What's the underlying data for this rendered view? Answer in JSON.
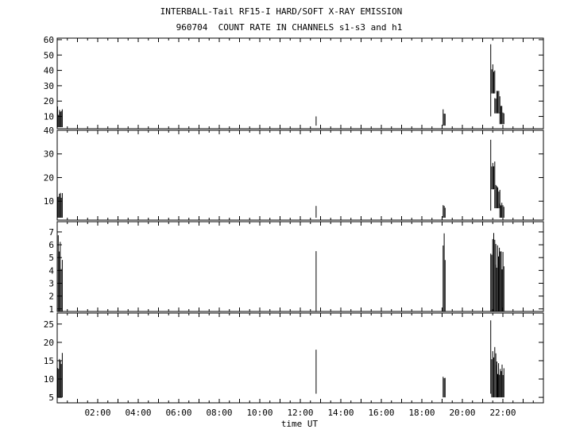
{
  "header": {
    "title": "INTERBALL-Tail RF15-I HARD/SOFT X-RAY EMISSION",
    "subtitle": "960704  COUNT RATE IN CHANNELS s1-s3 and h1"
  },
  "chart_data": {
    "type": "line",
    "title": "INTERBALL-Tail RF15-I HARD/SOFT X-RAY EMISSION",
    "subtitle": "960704  COUNT RATE IN CHANNELS s1-s3 and h1",
    "xlabel": "time UT",
    "xlim": [
      0.0,
      24.0
    ],
    "xticks": [
      "02:00",
      "04:00",
      "06:00",
      "08:00",
      "10:00",
      "12:00",
      "14:00",
      "16:00",
      "18:00",
      "20:00",
      "22:00"
    ],
    "xtick_hours": [
      2,
      4,
      6,
      8,
      10,
      12,
      14,
      16,
      18,
      20,
      22
    ],
    "grid": false,
    "panels": [
      {
        "ylim": [
          2,
          61
        ],
        "yticks": [
          10,
          20,
          30,
          40,
          50,
          60
        ],
        "bursts": [
          {
            "start": 0.02,
            "end": 0.25,
            "low": 3,
            "high": 17
          },
          {
            "start": 12.78,
            "end": 12.8,
            "low": 4,
            "high": 10
          },
          {
            "start": 19.05,
            "end": 19.15,
            "low": 4,
            "high": 15
          },
          {
            "start": 21.4,
            "end": 21.45,
            "low": 10,
            "high": 57
          },
          {
            "start": 21.45,
            "end": 21.6,
            "low": 25,
            "high": 50
          },
          {
            "start": 21.6,
            "end": 21.85,
            "low": 12,
            "high": 28
          },
          {
            "start": 21.85,
            "end": 22.05,
            "low": 5,
            "high": 17
          }
        ]
      },
      {
        "ylim": [
          2,
          40
        ],
        "yticks": [
          10,
          20,
          30,
          40
        ],
        "bursts": [
          {
            "start": 0.02,
            "end": 0.25,
            "low": 3,
            "high": 14
          },
          {
            "start": 12.78,
            "end": 12.8,
            "low": 3,
            "high": 8
          },
          {
            "start": 19.05,
            "end": 19.15,
            "low": 3,
            "high": 10
          },
          {
            "start": 21.4,
            "end": 21.45,
            "low": 6,
            "high": 36
          },
          {
            "start": 21.45,
            "end": 21.6,
            "low": 15,
            "high": 27
          },
          {
            "start": 21.6,
            "end": 21.85,
            "low": 7,
            "high": 19
          },
          {
            "start": 21.85,
            "end": 22.05,
            "low": 3,
            "high": 10
          }
        ]
      },
      {
        "ylim": [
          0.8,
          7.8
        ],
        "yticks": [
          1,
          2,
          3,
          4,
          5,
          6,
          7
        ],
        "bursts": [
          {
            "start": 0.05,
            "end": 0.25,
            "low": 0.8,
            "high": 6.8
          },
          {
            "start": 12.78,
            "end": 12.8,
            "low": 0.8,
            "high": 5.5
          },
          {
            "start": 19.05,
            "end": 19.15,
            "low": 0.8,
            "high": 7.0
          },
          {
            "start": 21.4,
            "end": 21.65,
            "low": 0.8,
            "high": 7.7
          },
          {
            "start": 21.65,
            "end": 22.05,
            "low": 0.8,
            "high": 6.0
          }
        ]
      },
      {
        "ylim": [
          3.5,
          28
        ],
        "yticks": [
          5,
          10,
          15,
          20,
          25
        ],
        "bursts": [
          {
            "start": 0.02,
            "end": 0.25,
            "low": 5,
            "high": 18
          },
          {
            "start": 12.78,
            "end": 12.8,
            "low": 6,
            "high": 18
          },
          {
            "start": 19.05,
            "end": 19.15,
            "low": 5,
            "high": 13
          },
          {
            "start": 21.4,
            "end": 21.45,
            "low": 6,
            "high": 26
          },
          {
            "start": 21.45,
            "end": 21.7,
            "low": 5,
            "high": 19
          },
          {
            "start": 21.7,
            "end": 22.05,
            "low": 5,
            "high": 16
          }
        ]
      }
    ]
  }
}
